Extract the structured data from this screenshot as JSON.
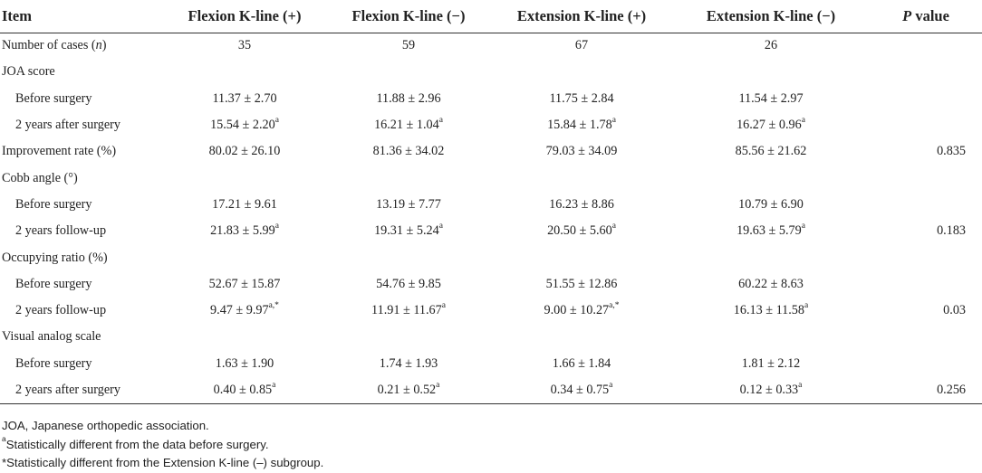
{
  "table": {
    "headers": {
      "item": "Item",
      "col1": "Flexion K-line (+)",
      "col2": "Flexion K-line (−)",
      "col3": "Extension K-line (+)",
      "col4": "Extension K-line (−)",
      "p_italic": "P",
      "p_rest": " value"
    },
    "rows": [
      {
        "label": "Number of cases (",
        "label_italic": "n",
        "label_end": ")",
        "cells": [
          {
            "v": "35"
          },
          {
            "v": "59"
          },
          {
            "v": "67"
          },
          {
            "v": "26"
          }
        ],
        "p": ""
      },
      {
        "label": "JOA score",
        "cells": [],
        "p": ""
      },
      {
        "label": "Before surgery",
        "cells": [
          {
            "v": "11.37 ± 2.70"
          },
          {
            "v": "11.88 ± 2.96"
          },
          {
            "v": "11.75 ± 2.84"
          },
          {
            "v": "11.54 ± 2.97"
          }
        ],
        "p": ""
      },
      {
        "label": "2 years after surgery",
        "cells": [
          {
            "v": "15.54 ± 2.20",
            "s": "a"
          },
          {
            "v": "16.21 ± 1.04",
            "s": "a"
          },
          {
            "v": "15.84 ± 1.78",
            "s": "a"
          },
          {
            "v": "16.27 ± 0.96",
            "s": "a"
          }
        ],
        "p": ""
      },
      {
        "label": "Improvement rate (%)",
        "cells": [
          {
            "v": "80.02 ± 26.10"
          },
          {
            "v": "81.36 ± 34.02"
          },
          {
            "v": "79.03 ± 34.09"
          },
          {
            "v": "85.56 ± 21.62"
          }
        ],
        "p": "0.835"
      },
      {
        "label": "Cobb angle (°)",
        "cells": [],
        "p": ""
      },
      {
        "label": "Before surgery",
        "cells": [
          {
            "v": "17.21 ± 9.61"
          },
          {
            "v": "13.19 ± 7.77"
          },
          {
            "v": "16.23 ± 8.86"
          },
          {
            "v": "10.79 ± 6.90"
          }
        ],
        "p": ""
      },
      {
        "label": "2 years follow-up",
        "cells": [
          {
            "v": "21.83 ± 5.99",
            "s": "a"
          },
          {
            "v": "19.31 ± 5.24",
            "s": "a"
          },
          {
            "v": "20.50 ± 5.60",
            "s": "a"
          },
          {
            "v": "19.63 ± 5.79",
            "s": "a"
          }
        ],
        "p": "0.183"
      },
      {
        "label": "Occupying ratio (%)",
        "cells": [],
        "p": ""
      },
      {
        "label": "Before surgery",
        "cells": [
          {
            "v": "52.67 ± 15.87"
          },
          {
            "v": "54.76 ± 9.85"
          },
          {
            "v": "51.55 ± 12.86"
          },
          {
            "v": "60.22 ± 8.63"
          }
        ],
        "p": ""
      },
      {
        "label": "2 years follow-up",
        "cells": [
          {
            "v": "9.47 ± 9.97",
            "s": "a,*"
          },
          {
            "v": "11.91 ± 11.67",
            "s": "a"
          },
          {
            "v": "9.00 ± 10.27",
            "s": "a,*"
          },
          {
            "v": "16.13 ± 11.58",
            "s": "a"
          }
        ],
        "p": "0.03"
      },
      {
        "label": "Visual analog scale",
        "cells": [],
        "p": ""
      },
      {
        "label": "Before surgery",
        "cells": [
          {
            "v": "1.63 ± 1.90"
          },
          {
            "v": "1.74 ± 1.93"
          },
          {
            "v": "1.66 ± 1.84"
          },
          {
            "v": "1.81 ± 2.12"
          }
        ],
        "p": ""
      },
      {
        "label": "2 years after surgery",
        "cells": [
          {
            "v": "0.40 ± 0.85",
            "s": "a"
          },
          {
            "v": "0.21 ± 0.52",
            "s": "a"
          },
          {
            "v": "0.34 ± 0.75",
            "s": "a"
          },
          {
            "v": "0.12 ± 0.33",
            "s": "a"
          }
        ],
        "p": "0.256"
      }
    ]
  },
  "footnotes": {
    "n1": "JOA, Japanese orthopedic association.",
    "n2_mark": "a",
    "n2": "Statistically different from the data before surgery.",
    "n3": "*Statistically different from the Extension K-line (–) subgroup."
  }
}
